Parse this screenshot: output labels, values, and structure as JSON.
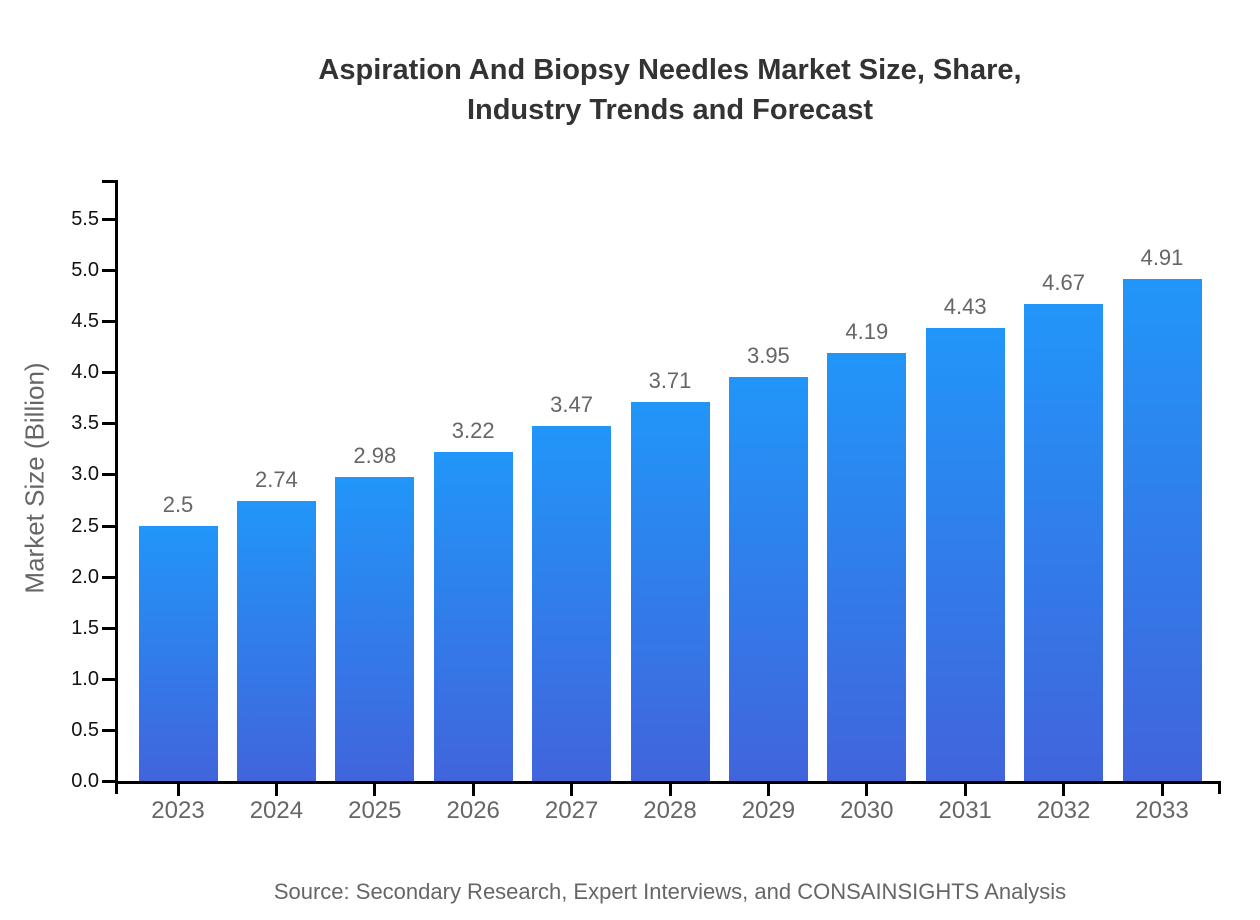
{
  "title_lines": [
    "Aspiration And Biopsy Needles Market Size, Share,",
    "Industry Trends and Forecast"
  ],
  "source_note": "Source: Secondary Research, Expert Interviews, and CONSAINSIGHTS Analysis",
  "chart_data": {
    "type": "bar",
    "title": "Aspiration And Biopsy Needles Market Size, Share, Industry Trends and Forecast",
    "categories": [
      "2023",
      "2024",
      "2025",
      "2026",
      "2027",
      "2028",
      "2029",
      "2030",
      "2031",
      "2032",
      "2033"
    ],
    "values": [
      2.5,
      2.74,
      2.98,
      3.22,
      3.47,
      3.71,
      3.95,
      4.19,
      4.43,
      4.67,
      4.91
    ],
    "value_labels": [
      "2.5",
      "2.74",
      "2.98",
      "3.22",
      "3.47",
      "3.71",
      "3.95",
      "4.19",
      "4.43",
      "4.67",
      "4.91"
    ],
    "xlabel": "",
    "ylabel": "Market Size (Billion)",
    "ylim": [
      0,
      5.88
    ],
    "ytick_labels": [
      "0.0",
      "0.5",
      "1.0",
      "1.5",
      "2.0",
      "2.5",
      "3.0",
      "3.5",
      "4.0",
      "4.5",
      "5.0",
      "5.5"
    ],
    "ytick_values": [
      0,
      0.5,
      1.0,
      1.5,
      2.0,
      2.5,
      3.0,
      3.5,
      4.0,
      4.5,
      5.0,
      5.5
    ],
    "grid": false,
    "legend_position": "none",
    "colors": {
      "bar_gradient_top": "#2196f8",
      "bar_gradient_bottom": "#4164dc",
      "title_text": "#333333",
      "secondary_text": "#666666",
      "tick_label_text": "#111111",
      "axis": "#000000",
      "background": "#ffffff"
    }
  }
}
